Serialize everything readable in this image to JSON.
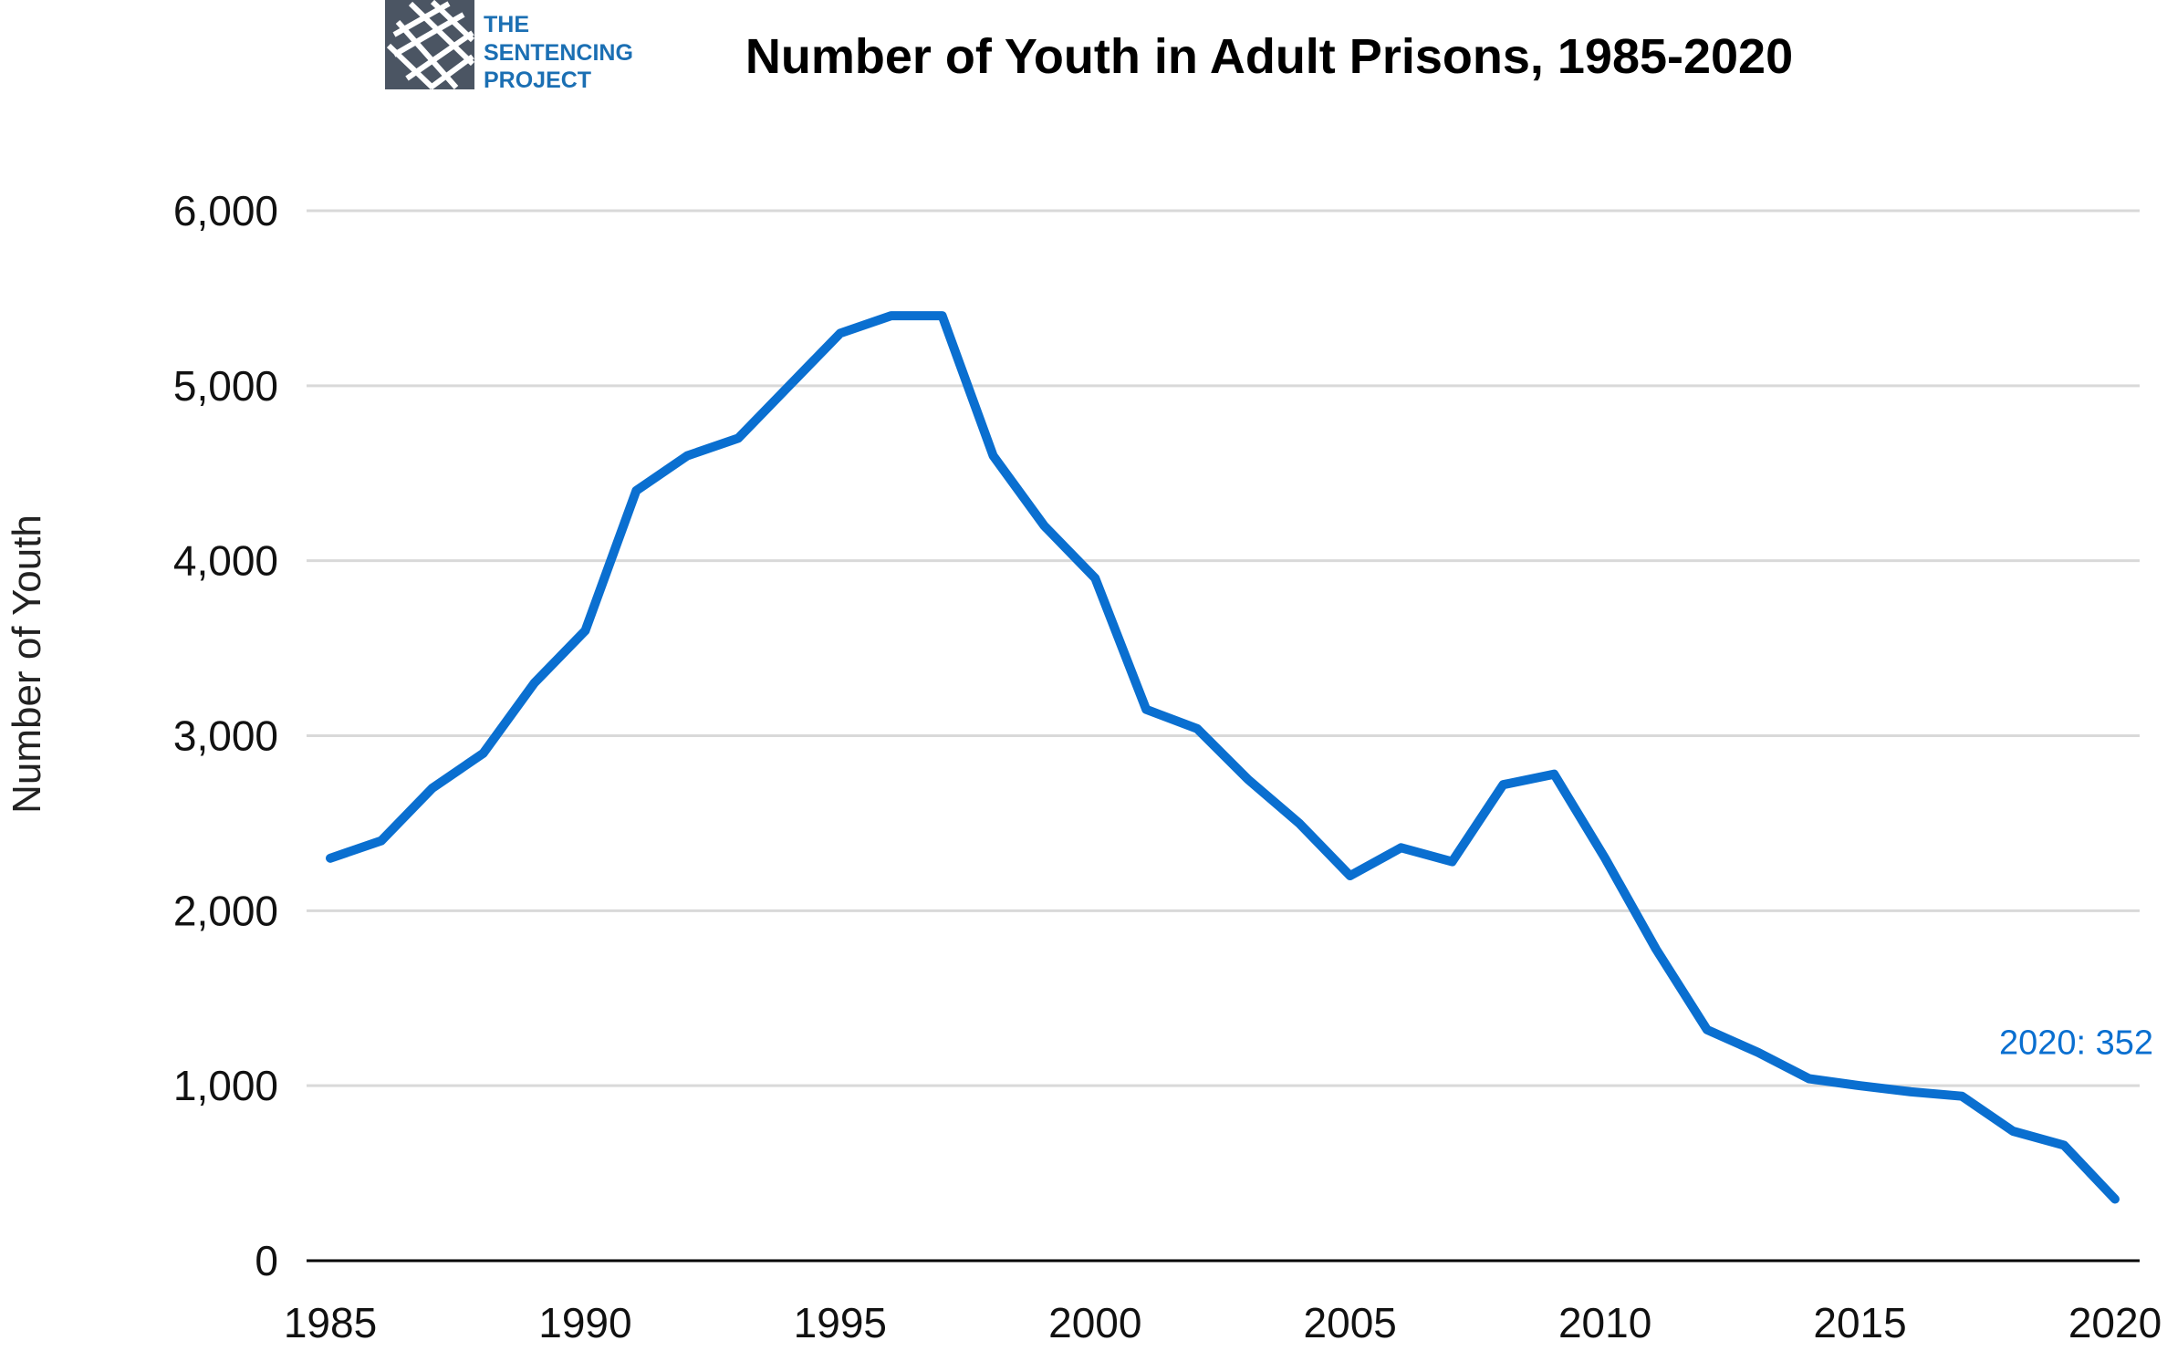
{
  "logo": {
    "lines": [
      "THE",
      "SENTENCING",
      "PROJECT"
    ],
    "text_color": "#1b6fb3",
    "mark_color": "#4b5563"
  },
  "colors": {
    "series": "#0a6fd0",
    "grid": "#d9d9d9",
    "axis": "#000000"
  },
  "chart_data": {
    "type": "line",
    "title": "Number of Youth in Adult Prisons, 1985-2020",
    "ylabel": "Number of Youth",
    "xlabel": "",
    "xlim": [
      1985,
      2020
    ],
    "ylim": [
      0,
      6000
    ],
    "x_ticks": [
      "1985",
      "1990",
      "1995",
      "2000",
      "2005",
      "2010",
      "2015",
      "2020"
    ],
    "y_ticks": [
      "0",
      "1,000",
      "2,000",
      "3,000",
      "4,000",
      "5,000",
      "6,000"
    ],
    "grid": true,
    "series": [
      {
        "x": [
          1985,
          1986,
          1987,
          1988,
          1989,
          1990,
          1991,
          1992,
          1993,
          1994,
          1995,
          1996,
          1997,
          1998,
          1999,
          2000,
          2001,
          2002,
          2003,
          2004,
          2005,
          2006,
          2007,
          2008,
          2009,
          2010,
          2011,
          2012,
          2013,
          2014,
          2015,
          2016,
          2017,
          2018,
          2019,
          2020
        ],
        "values": [
          2300,
          2400,
          2700,
          2900,
          3300,
          3600,
          4400,
          4600,
          4700,
          5000,
          5300,
          5400,
          5400,
          4600,
          4200,
          3900,
          3150,
          3040,
          2750,
          2500,
          2200,
          2360,
          2280,
          2720,
          2780,
          2300,
          1780,
          1320,
          1190,
          1040,
          1000,
          965,
          940,
          740,
          660,
          352
        ]
      }
    ],
    "annotations": [
      {
        "text": "2020: 352",
        "x": 2020,
        "y": 352
      }
    ]
  }
}
